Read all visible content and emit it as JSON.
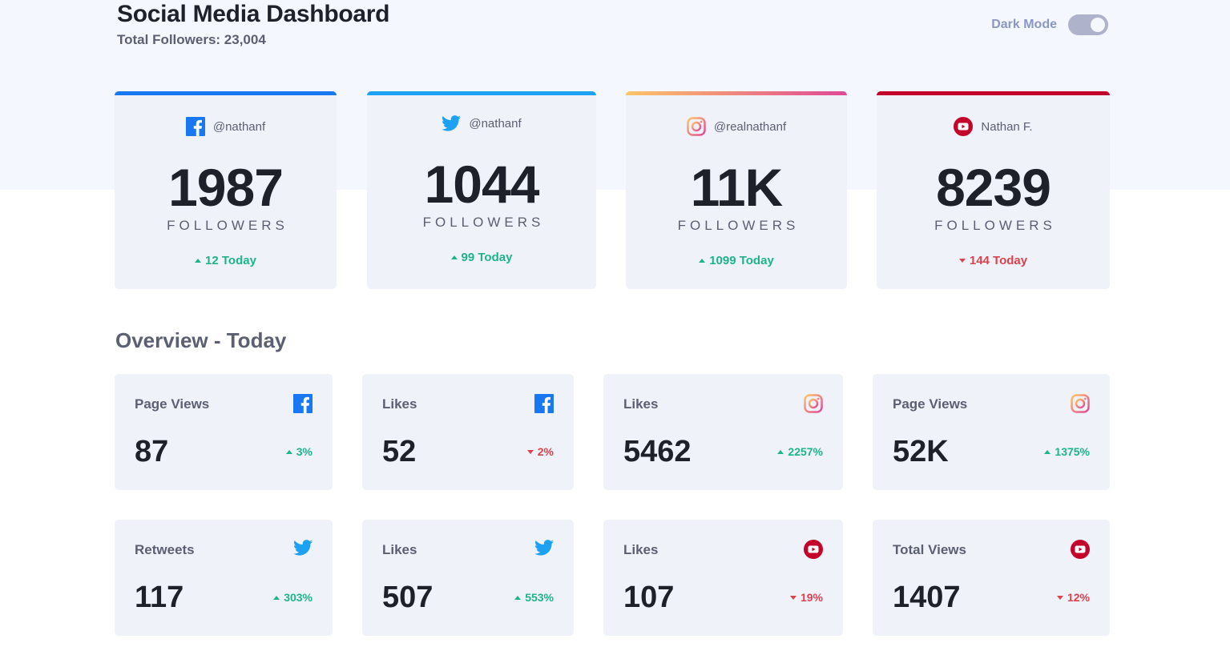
{
  "header": {
    "title": "Social Media Dashboard",
    "total_followers": "Total Followers: 23,004"
  },
  "toggle": {
    "label": "Dark Mode",
    "state": "off"
  },
  "colors": {
    "facebook": "#1778f2",
    "twitter": "#1da1f2",
    "instagram_gradient": [
      "#fdc468",
      "#df4996"
    ],
    "youtube": "#c4032a",
    "up": "#1db489",
    "down": "#dc414c"
  },
  "followers": [
    {
      "platform": "facebook",
      "icon": "facebook-icon",
      "handle": "@nathanf",
      "count": "1987",
      "label": "FOLLOWERS",
      "today": "12 Today",
      "trend": "up"
    },
    {
      "platform": "twitter",
      "icon": "twitter-icon",
      "handle": "@nathanf",
      "count": "1044",
      "label": "FOLLOWERS",
      "today": "99 Today",
      "trend": "up"
    },
    {
      "platform": "instagram",
      "icon": "instagram-icon",
      "handle": "@realnathanf",
      "count": "11K",
      "label": "FOLLOWERS",
      "today": "1099 Today",
      "trend": "up"
    },
    {
      "platform": "youtube",
      "icon": "youtube-icon",
      "handle": "Nathan F.",
      "count": "8239",
      "label": "FOLLOWERS",
      "today": "144 Today",
      "trend": "down"
    }
  ],
  "overview": {
    "title": "Overview - Today",
    "cards": [
      {
        "label": "Page Views",
        "icon": "facebook-icon",
        "value": "87",
        "change": "3%",
        "trend": "up"
      },
      {
        "label": "Likes",
        "icon": "facebook-icon",
        "value": "52",
        "change": "2%",
        "trend": "down"
      },
      {
        "label": "Likes",
        "icon": "instagram-icon",
        "value": "5462",
        "change": "2257%",
        "trend": "up"
      },
      {
        "label": "Page Views",
        "icon": "instagram-icon",
        "value": "52K",
        "change": "1375%",
        "trend": "up"
      },
      {
        "label": "Retweets",
        "icon": "twitter-icon",
        "value": "117",
        "change": "303%",
        "trend": "up"
      },
      {
        "label": "Likes",
        "icon": "twitter-icon",
        "value": "507",
        "change": "553%",
        "trend": "up"
      },
      {
        "label": "Likes",
        "icon": "youtube-icon",
        "value": "107",
        "change": "19%",
        "trend": "down"
      },
      {
        "label": "Total Views",
        "icon": "youtube-icon",
        "value": "1407",
        "change": "12%",
        "trend": "down"
      }
    ]
  }
}
